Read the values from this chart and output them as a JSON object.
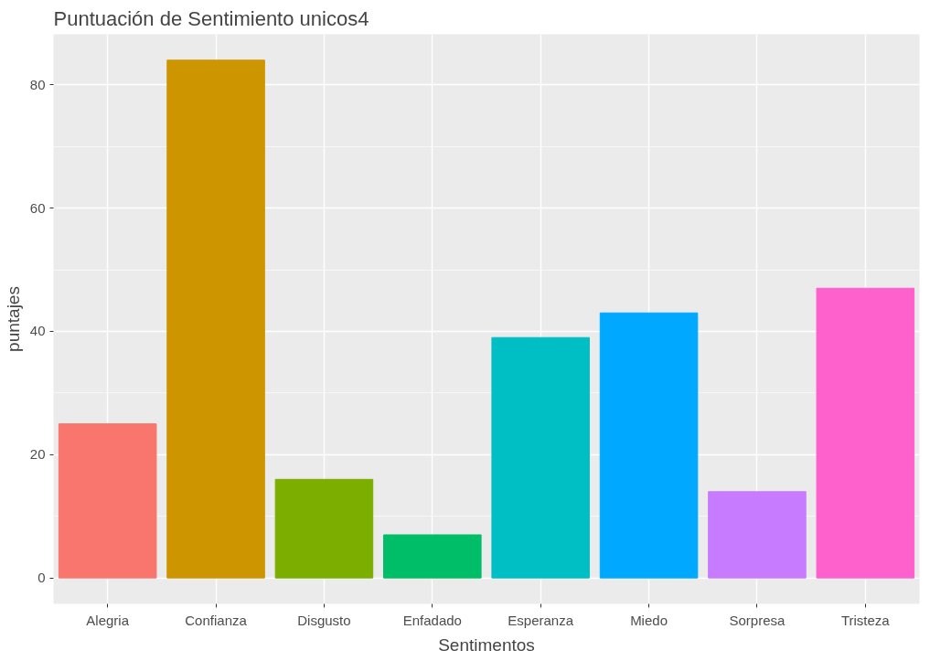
{
  "chart_data": {
    "type": "bar",
    "title": "Puntuación de Sentimiento unicos4",
    "xlabel": "Sentimentos",
    "ylabel": "puntajes",
    "categories": [
      "Alegria",
      "Confianza",
      "Disgusto",
      "Enfadado",
      "Esperanza",
      "Miedo",
      "Sorpresa",
      "Tristeza"
    ],
    "values": [
      25,
      84,
      16,
      7,
      39,
      43,
      14,
      47
    ],
    "colors": [
      "#f8766d",
      "#cd9600",
      "#7cae00",
      "#00be67",
      "#00bfc4",
      "#00a9ff",
      "#c77cff",
      "#ff61cc"
    ],
    "ylim": [
      -4.2,
      88.2
    ],
    "yticks": [
      0,
      20,
      40,
      60,
      80
    ],
    "grid": true
  }
}
